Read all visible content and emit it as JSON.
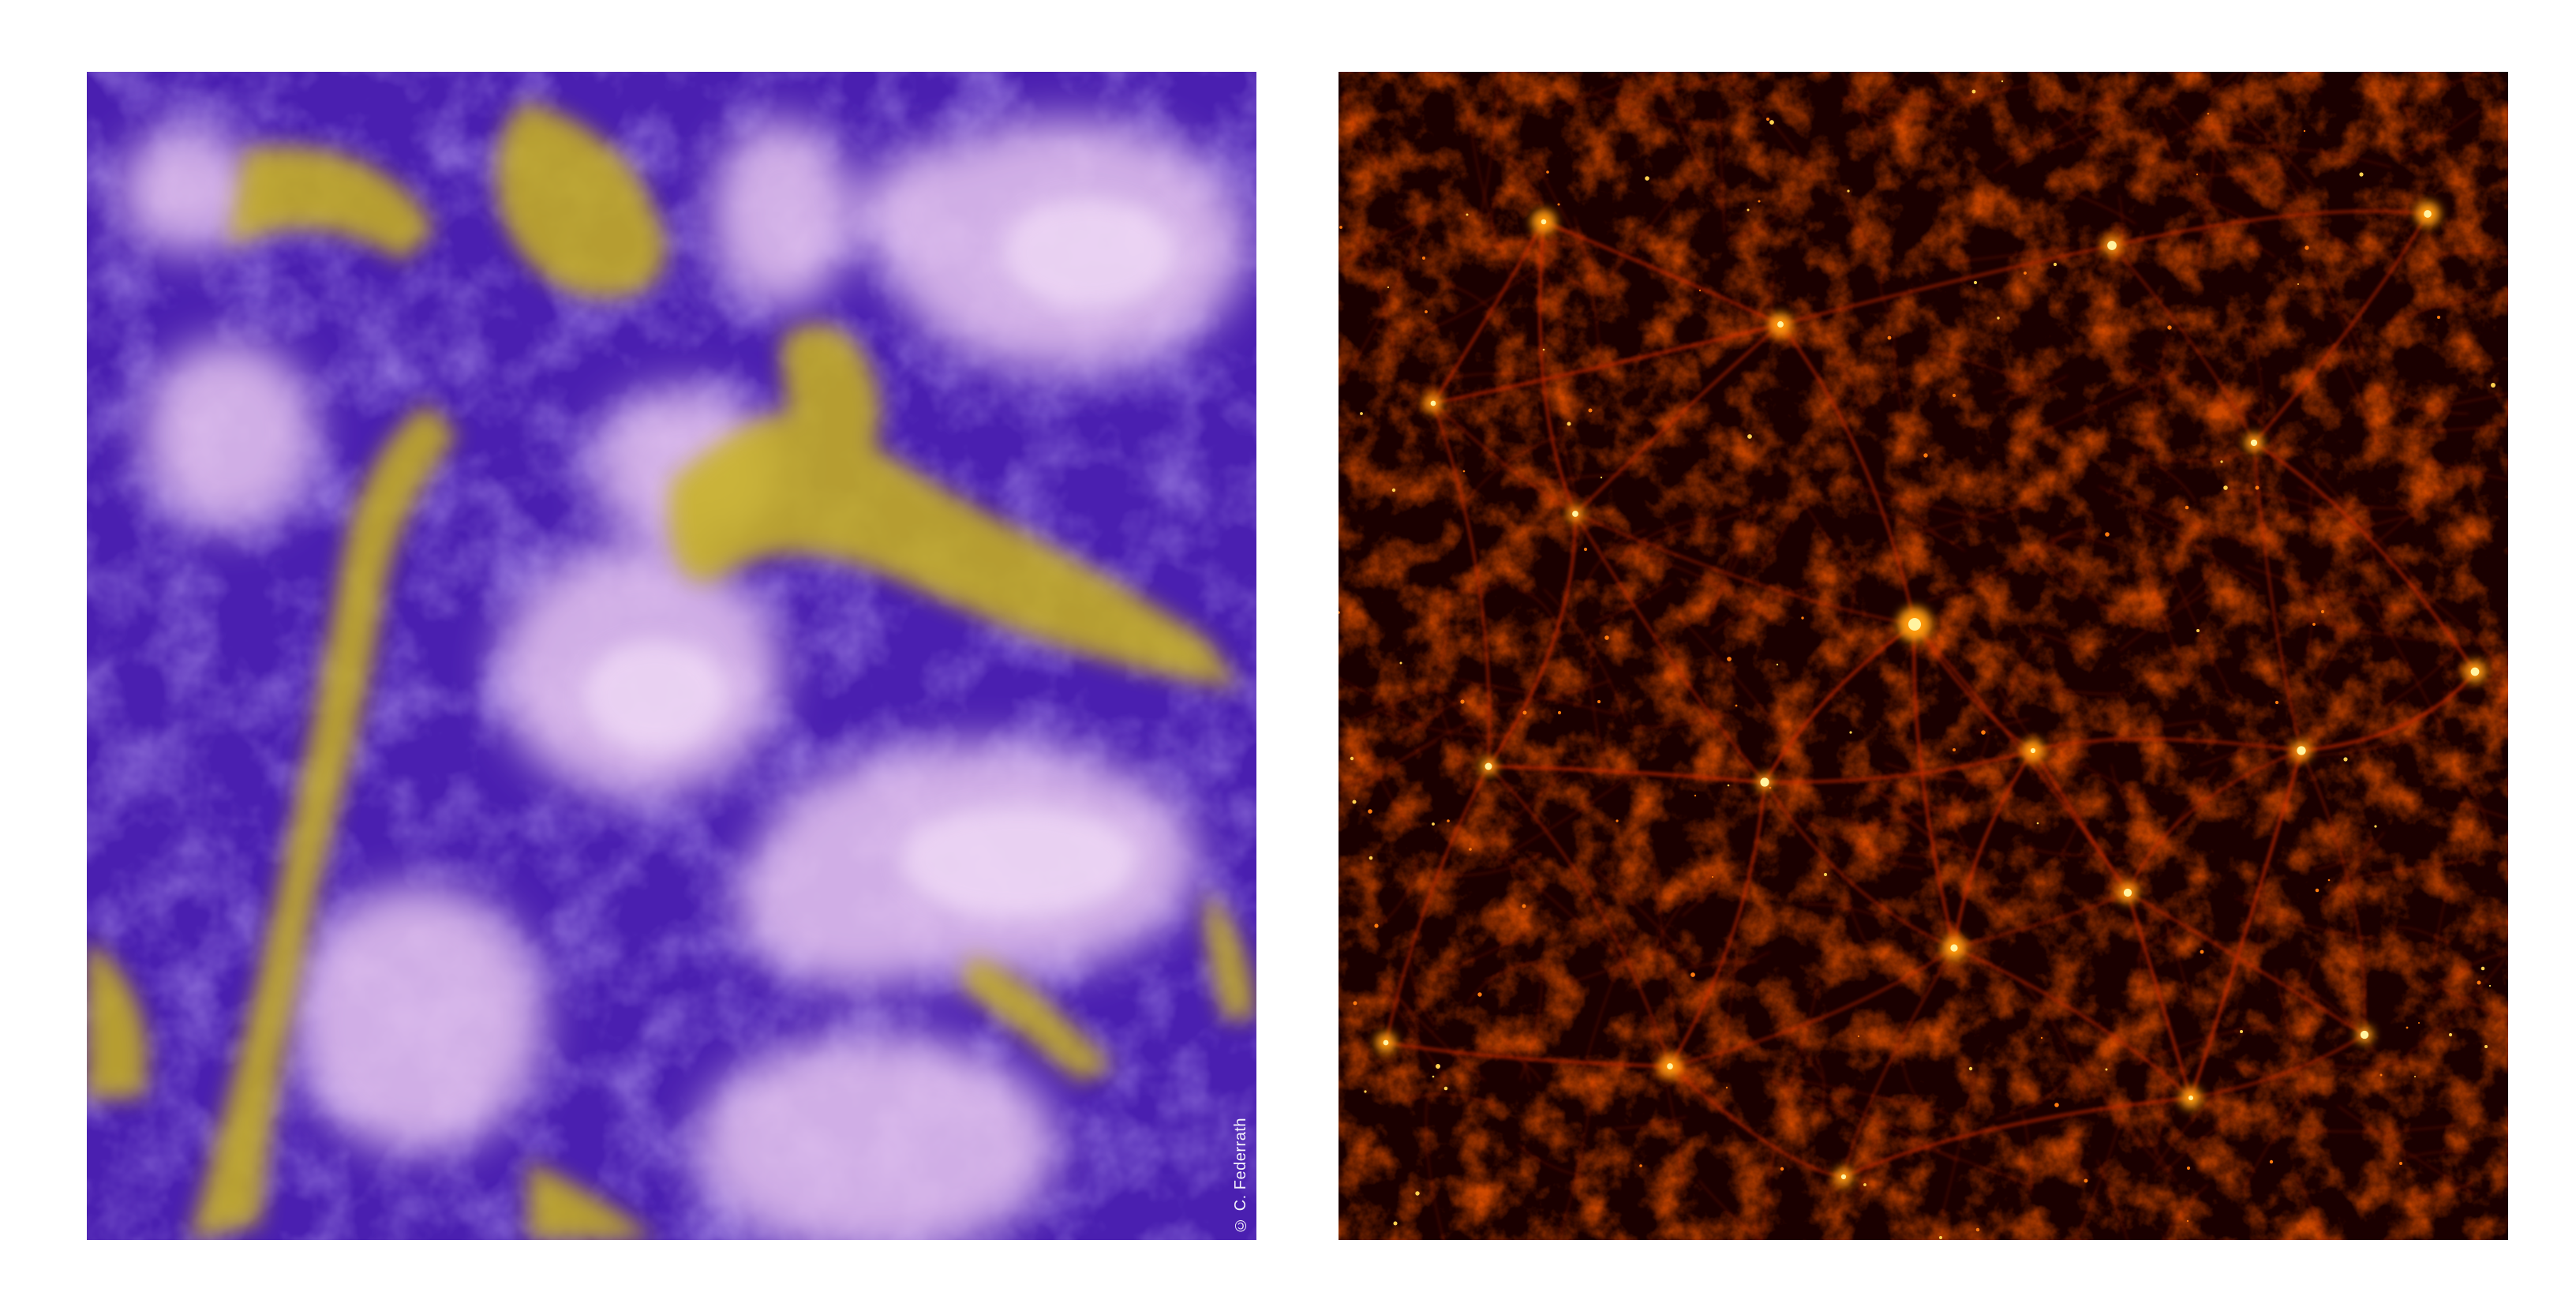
{
  "left_panel": {
    "credit": "© C. Federrath",
    "colors": {
      "background": "#4a1fb0",
      "gas_light": "#e8c8f0",
      "gas_mid": "#9a7ad8",
      "filament": "#c9b41e"
    }
  },
  "right_panel": {
    "colors": {
      "background": "#1a0000",
      "web": "#c41a00",
      "bright": "#ff9a10",
      "node": "#fff3a0"
    }
  }
}
